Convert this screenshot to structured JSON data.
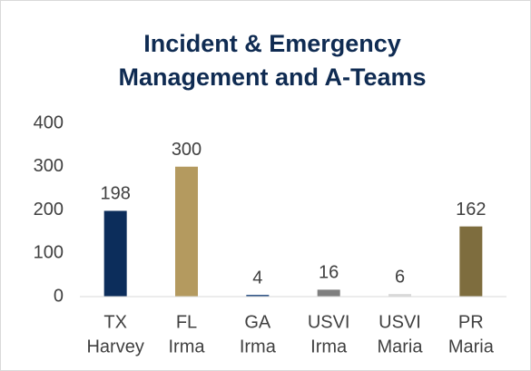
{
  "chart_data": {
    "type": "bar",
    "title": [
      "Incident & Emergency",
      "Management and A-Teams"
    ],
    "categories": [
      [
        "TX",
        "Harvey"
      ],
      [
        "FL",
        "Irma"
      ],
      [
        "GA",
        "Irma"
      ],
      [
        "USVI",
        "Irma"
      ],
      [
        "USVI",
        "Maria"
      ],
      [
        "PR",
        "Maria"
      ]
    ],
    "values": [
      198,
      300,
      4,
      16,
      6,
      162
    ],
    "colors": [
      "#0c2d5b",
      "#b49a5f",
      "#234a80",
      "#7f7f7f",
      "#d9d9d9",
      "#7e6d3e"
    ],
    "ylim": [
      0,
      400
    ],
    "yticks": [
      0,
      100,
      200,
      300,
      400
    ],
    "grid": false
  }
}
